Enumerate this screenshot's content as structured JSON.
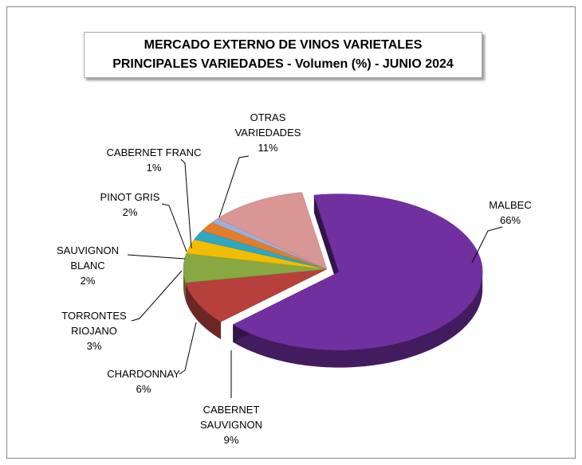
{
  "chart_data": {
    "type": "pie",
    "title": "MERCADO EXTERNO DE VINOS VARIETALES",
    "subtitle": "PRINCIPALES VARIEDADES - Volumen (%) - JUNIO 2024",
    "categories": [
      "MALBEC",
      "CABERNET SAUVIGNON",
      "CHARDONNAY",
      "TORRONTES RIOJANO",
      "SAUVIGNON BLANC",
      "PINOT GRIS",
      "CABERNET FRANC",
      "OTRAS VARIEDADES"
    ],
    "values": [
      66,
      9,
      6,
      3,
      2,
      2,
      1,
      11
    ],
    "value_labels": [
      "66%",
      "9%",
      "6%",
      "3%",
      "2%",
      "2%",
      "1%",
      "11%"
    ],
    "colors": [
      "#7030a0",
      "#b5403c",
      "#88a843",
      "#f2bd00",
      "#2fa6c2",
      "#e47d2a",
      "#9bb0d8",
      "#d99694"
    ]
  }
}
